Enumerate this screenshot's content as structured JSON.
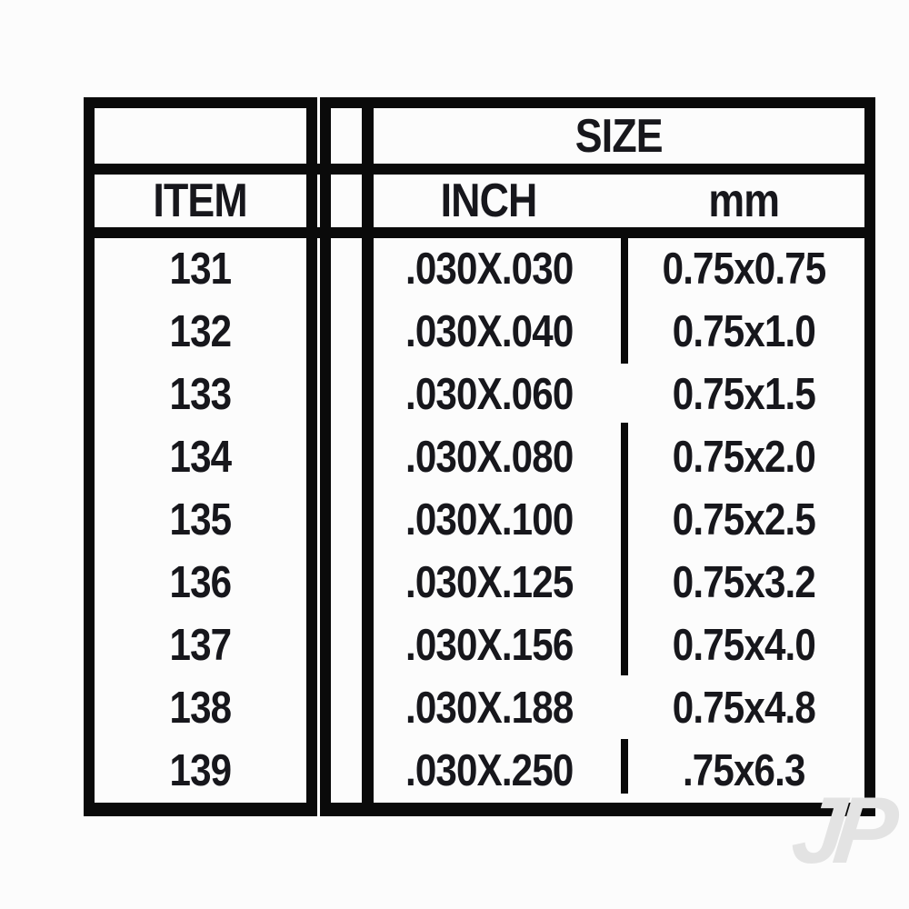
{
  "table": {
    "headers": {
      "size": "SIZE",
      "item": "ITEM",
      "inch": "INCH",
      "mm": "mm"
    },
    "rows": [
      {
        "item": "131",
        "inch": ".030X.030",
        "mm": "0.75x0.75"
      },
      {
        "item": "132",
        "inch": ".030X.040",
        "mm": "0.75x1.0"
      },
      {
        "item": "133",
        "inch": ".030X.060",
        "mm": "0.75x1.5"
      },
      {
        "item": "134",
        "inch": ".030X.080",
        "mm": "0.75x2.0"
      },
      {
        "item": "135",
        "inch": ".030X.100",
        "mm": "0.75x2.5"
      },
      {
        "item": "136",
        "inch": ".030X.125",
        "mm": "0.75x3.2"
      },
      {
        "item": "137",
        "inch": ".030X.156",
        "mm": "0.75x4.0"
      },
      {
        "item": "138",
        "inch": ".030X.188",
        "mm": "0.75x4.8"
      },
      {
        "item": "139",
        "inch": ".030X.250",
        "mm": ".75x6.3"
      }
    ]
  },
  "watermark": {
    "text": "JP"
  },
  "colors": {
    "line": "#0a0a0a",
    "text": "#17171c",
    "watermark": "#e3e3e3",
    "background": "#fcfcfc"
  },
  "chart_data": {
    "type": "table",
    "title": "Item size chart",
    "columns": [
      "ITEM",
      "SIZE INCH",
      "SIZE mm"
    ],
    "rows": [
      [
        "131",
        ".030X.030",
        "0.75x0.75"
      ],
      [
        "132",
        ".030X.040",
        "0.75x1.0"
      ],
      [
        "133",
        ".030X.060",
        "0.75x1.5"
      ],
      [
        "134",
        ".030X.080",
        "0.75x2.0"
      ],
      [
        "135",
        ".030X.100",
        "0.75x2.5"
      ],
      [
        "136",
        ".030X.125",
        "0.75x3.2"
      ],
      [
        "137",
        ".030X.156",
        "0.75x4.0"
      ],
      [
        "138",
        ".030X.188",
        "0.75x4.8"
      ],
      [
        "139",
        ".030X.250",
        ".75x6.3"
      ]
    ]
  }
}
